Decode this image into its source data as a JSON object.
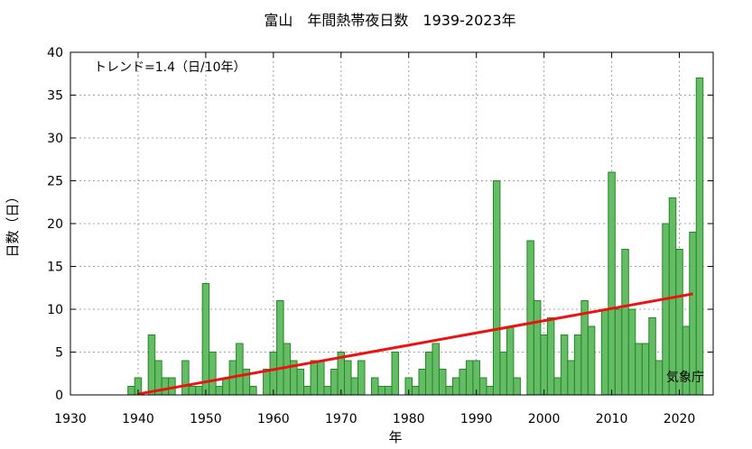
{
  "chart_data": {
    "type": "bar",
    "title": "富山　年間熱帯夜日数　1939-2023年",
    "xlabel": "年",
    "ylabel": "日数（日）",
    "xlim": [
      1930,
      2025
    ],
    "ylim": [
      0,
      40
    ],
    "x_ticks": [
      "1930",
      "1940",
      "1950",
      "1960",
      "1970",
      "1980",
      "1990",
      "2000",
      "2010",
      "2020"
    ],
    "y_ticks": [
      "0",
      "5",
      "10",
      "15",
      "20",
      "25",
      "30",
      "35",
      "40"
    ],
    "grid": true,
    "colors": {
      "bar_fill": "#66bb66",
      "bar_edge": "#1f8a1f",
      "trend": "#ee1111"
    },
    "trend_label": "トレンド=1.4（日/10年）",
    "source_label": "気象庁",
    "trend": {
      "start": [
        1940,
        0.1
      ],
      "end": [
        2022,
        11.8
      ]
    },
    "years": [
      1939,
      1940,
      1941,
      1942,
      1943,
      1944,
      1945,
      1946,
      1947,
      1948,
      1949,
      1950,
      1951,
      1952,
      1953,
      1954,
      1955,
      1956,
      1957,
      1958,
      1959,
      1960,
      1961,
      1962,
      1963,
      1964,
      1965,
      1966,
      1967,
      1968,
      1969,
      1970,
      1971,
      1972,
      1973,
      1974,
      1975,
      1976,
      1977,
      1978,
      1979,
      1980,
      1981,
      1982,
      1983,
      1984,
      1985,
      1986,
      1987,
      1988,
      1989,
      1990,
      1991,
      1992,
      1993,
      1994,
      1995,
      1996,
      1997,
      1998,
      1999,
      2000,
      2001,
      2002,
      2003,
      2004,
      2005,
      2006,
      2007,
      2008,
      2009,
      2010,
      2011,
      2012,
      2013,
      2014,
      2015,
      2016,
      2017,
      2018,
      2019,
      2020,
      2021,
      2022,
      2023
    ],
    "values": [
      1,
      2,
      0,
      7,
      4,
      2,
      2,
      0,
      4,
      1,
      1,
      13,
      5,
      1,
      2,
      4,
      6,
      3,
      1,
      0,
      3,
      5,
      11,
      6,
      4,
      3,
      1,
      4,
      4,
      1,
      3,
      5,
      4,
      2,
      4,
      0,
      2,
      1,
      1,
      5,
      0,
      2,
      1,
      3,
      5,
      6,
      3,
      1,
      2,
      3,
      4,
      4,
      2,
      1,
      25,
      5,
      8,
      2,
      0,
      18,
      11,
      7,
      9,
      2,
      7,
      4,
      7,
      11,
      8,
      0,
      10,
      26,
      10,
      17,
      10,
      6,
      6,
      9,
      4,
      20,
      23,
      17,
      8,
      19,
      37
    ]
  }
}
